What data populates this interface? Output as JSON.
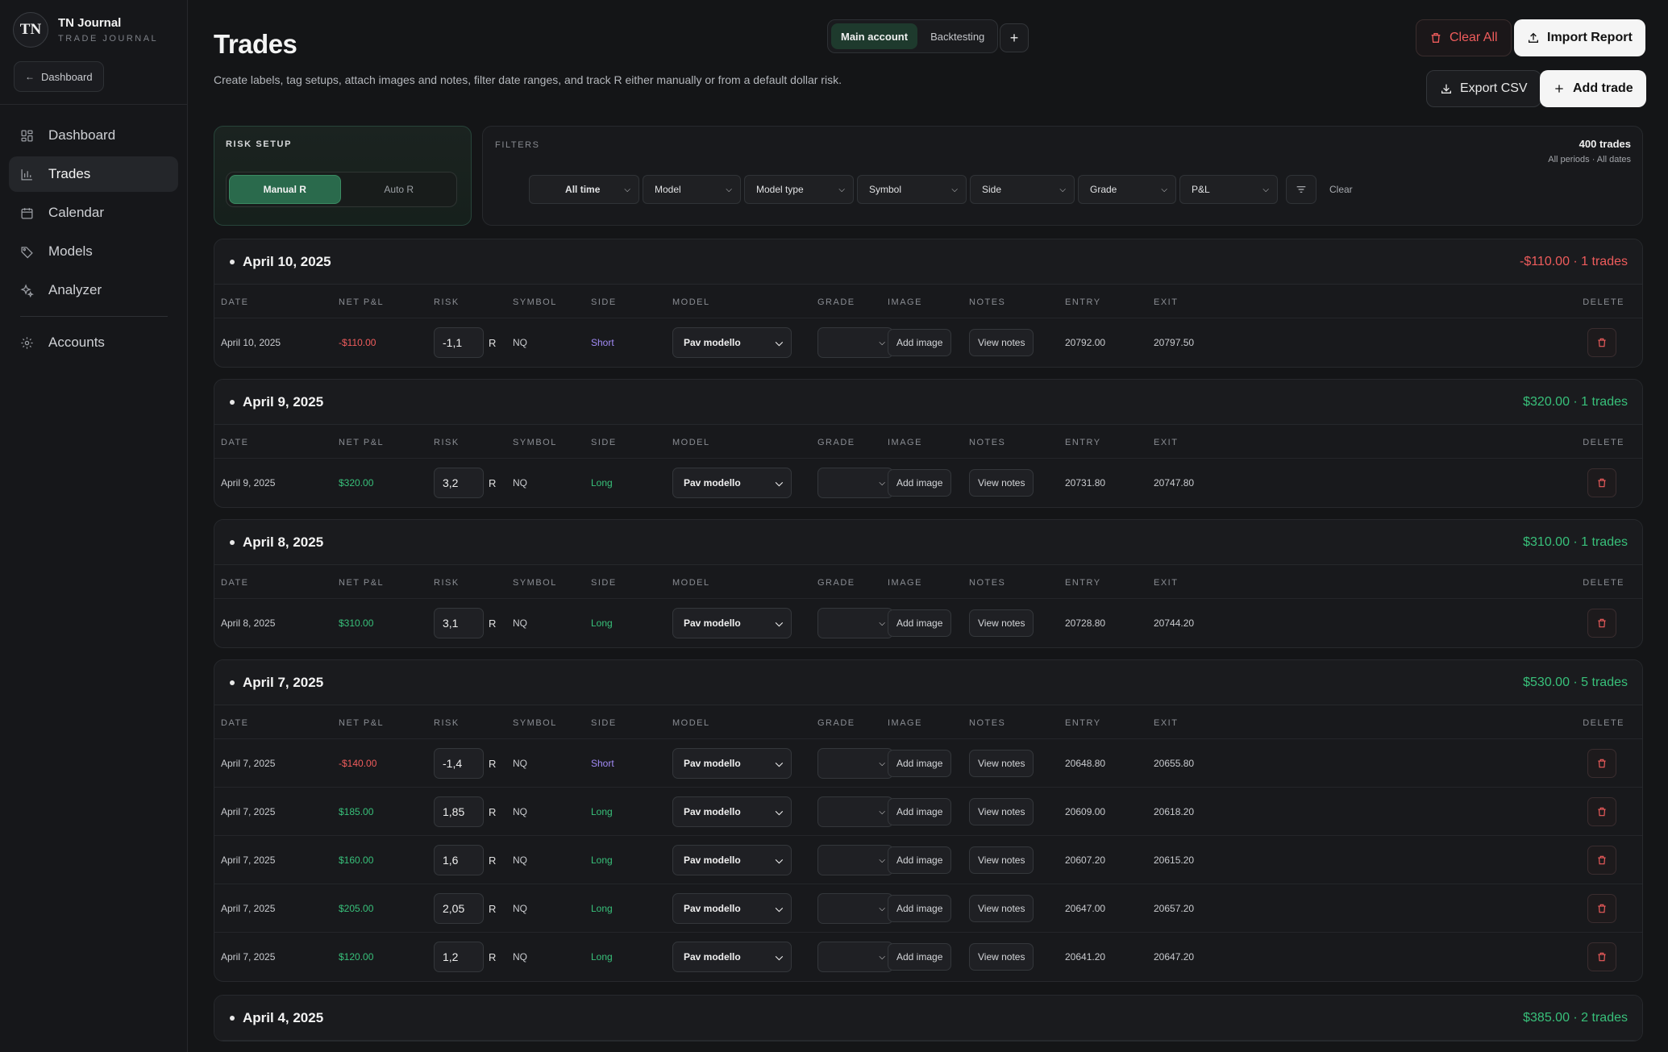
{
  "brand": {
    "logo": "TN",
    "title": "TN Journal",
    "subtitle": "TRADE JOURNAL"
  },
  "back_button": "Dashboard",
  "nav": [
    {
      "label": "Dashboard",
      "icon": "grid-icon",
      "active": false
    },
    {
      "label": "Trades",
      "icon": "bar-chart-icon",
      "active": true
    },
    {
      "label": "Calendar",
      "icon": "calendar-icon",
      "active": false
    },
    {
      "label": "Models",
      "icon": "tag-icon",
      "active": false
    },
    {
      "label": "Analyzer",
      "icon": "sparkle-icon",
      "active": false
    },
    {
      "label": "Accounts",
      "icon": "gear-icon",
      "active": false
    }
  ],
  "header": {
    "title": "Trades",
    "description": "Create labels, tag setups, attach images and notes, filter date ranges, and track R either manually or from a default dollar risk."
  },
  "accounts": {
    "tabs": [
      "Main account",
      "Backtesting"
    ],
    "active": "Main account",
    "add": "+"
  },
  "actions": {
    "clear_all": "Clear All",
    "import": "Import Report",
    "export": "Export CSV",
    "add": "Add trade"
  },
  "risk_setup": {
    "label": "RISK SETUP",
    "options": [
      "Manual R",
      "Auto R"
    ],
    "active": "Manual R"
  },
  "filters": {
    "label": "FILTERS",
    "count": "400 trades",
    "scope": "All periods · All dates",
    "selects": [
      "All time",
      "Model",
      "Model type",
      "Symbol",
      "Side",
      "Grade",
      "P&L"
    ],
    "clear": "Clear"
  },
  "columns": [
    "DATE",
    "NET P&L",
    "RISK",
    "SYMBOL",
    "SIDE",
    "MODEL",
    "GRADE",
    "IMAGE",
    "NOTES",
    "ENTRY",
    "EXIT",
    "DELETE"
  ],
  "row_labels": {
    "r": "R",
    "add_image": "Add image",
    "view_notes": "View notes"
  },
  "colors": {
    "positive": "#38c07a",
    "negative": "#ef5c5c",
    "short": "#a18af5",
    "accent": "#2a6a4c"
  },
  "days": [
    {
      "title": "April 10, 2025",
      "summary": "-$110.00 · 1 trades",
      "positive": false,
      "trades": [
        {
          "date": "April 10, 2025",
          "pnl": "-$110.00",
          "risk": "-1,1",
          "symbol": "NQ",
          "side": "Short",
          "model": "Pav modello",
          "entry": "20792.00",
          "exit": "20797.50"
        }
      ]
    },
    {
      "title": "April 9, 2025",
      "summary": "$320.00 · 1 trades",
      "positive": true,
      "trades": [
        {
          "date": "April 9, 2025",
          "pnl": "$320.00",
          "risk": "3,2",
          "symbol": "NQ",
          "side": "Long",
          "model": "Pav modello",
          "entry": "20731.80",
          "exit": "20747.80"
        }
      ]
    },
    {
      "title": "April 8, 2025",
      "summary": "$310.00 · 1 trades",
      "positive": true,
      "trades": [
        {
          "date": "April 8, 2025",
          "pnl": "$310.00",
          "risk": "3,1",
          "symbol": "NQ",
          "side": "Long",
          "model": "Pav modello",
          "entry": "20728.80",
          "exit": "20744.20"
        }
      ]
    },
    {
      "title": "April 7, 2025",
      "summary": "$530.00 · 5 trades",
      "positive": true,
      "trades": [
        {
          "date": "April 7, 2025",
          "pnl": "-$140.00",
          "risk": "-1,4",
          "symbol": "NQ",
          "side": "Short",
          "model": "Pav modello",
          "entry": "20648.80",
          "exit": "20655.80"
        },
        {
          "date": "April 7, 2025",
          "pnl": "$185.00",
          "risk": "1,85",
          "symbol": "NQ",
          "side": "Long",
          "model": "Pav modello",
          "entry": "20609.00",
          "exit": "20618.20"
        },
        {
          "date": "April 7, 2025",
          "pnl": "$160.00",
          "risk": "1,6",
          "symbol": "NQ",
          "side": "Long",
          "model": "Pav modello",
          "entry": "20607.20",
          "exit": "20615.20"
        },
        {
          "date": "April 7, 2025",
          "pnl": "$205.00",
          "risk": "2,05",
          "symbol": "NQ",
          "side": "Long",
          "model": "Pav modello",
          "entry": "20647.00",
          "exit": "20657.20"
        },
        {
          "date": "April 7, 2025",
          "pnl": "$120.00",
          "risk": "1,2",
          "symbol": "NQ",
          "side": "Long",
          "model": "Pav modello",
          "entry": "20641.20",
          "exit": "20647.20"
        }
      ]
    },
    {
      "title": "April 4, 2025",
      "summary": "$385.00 · 2 trades",
      "positive": true,
      "trades": []
    }
  ]
}
